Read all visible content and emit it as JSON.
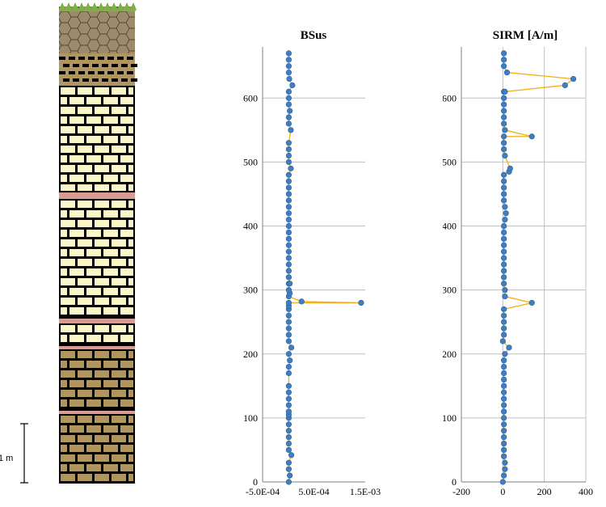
{
  "column": {
    "scale_bar_label": "1 m",
    "layer_colors": {
      "soil": "#9e8a6c",
      "grass": "#7ab33d",
      "cream": "#fbf6c9",
      "tan": "#b1955f",
      "pink": "#d99a91",
      "dark": "#000000"
    }
  },
  "colors": {
    "line": "#f2b21c",
    "marker": "#3f7fc1",
    "marker_edge": "#2f5f9a",
    "grid": "#bfbfbf",
    "axis": "#7f7f7f"
  },
  "chart_data": [
    {
      "type": "line",
      "title": "BSus",
      "xlabel": "",
      "ylabel": "",
      "xlim": [
        -0.0005,
        0.0015
      ],
      "ylim": [
        0,
        680
      ],
      "xticks": [
        -0.0005,
        0.0005,
        0.0015
      ],
      "xtick_labels": [
        "-5.0E-04",
        "5.0E-04",
        "1.5E-03"
      ],
      "yticks": [
        0,
        100,
        200,
        300,
        400,
        500,
        600
      ],
      "ytick_labels": [
        "0",
        "100",
        "200",
        "300",
        "400",
        "500",
        "600"
      ],
      "grid": "horizontal",
      "series": [
        {
          "x": [
            1e-05,
            3e-05,
            1e-05,
            1e-05,
            6e-05,
            1e-05,
            1e-05,
            1e-05,
            1e-05,
            1e-05,
            1e-05,
            1e-05,
            1e-05,
            1e-05,
            6e-05,
            1e-05,
            1e-05,
            1e-05,
            1e-05,
            1e-05,
            1e-05,
            1e-05,
            1e-05,
            1e-05,
            1e-05,
            1e-05,
            1e-05,
            3e-05,
            0.00026,
            0.00142,
            3e-05,
            3e-05,
            5e-05,
            1e-05,
            1e-05,
            1e-05,
            1e-05,
            1e-05,
            1e-05,
            1e-05,
            1e-05,
            1e-05,
            1e-05,
            1e-05,
            1e-05,
            1e-05,
            1e-05,
            1e-05,
            1e-05,
            1e-05,
            5e-05,
            1e-05,
            1e-05,
            1e-05,
            1e-05,
            1e-05,
            3e-05,
            1e-05,
            1e-05,
            1e-05,
            1e-05,
            1e-05,
            1e-05,
            1e-05,
            1e-05,
            1e-05,
            1e-05,
            1e-05,
            8e-05,
            2e-05,
            1e-05,
            1e-05
          ],
          "y": [
            0,
            10,
            20,
            30,
            42,
            50,
            60,
            70,
            80,
            90,
            100,
            105,
            110,
            120,
            210,
            220,
            230,
            240,
            250,
            260,
            270,
            275,
            280,
            290,
            300,
            310,
            200,
            190,
            282,
            280,
            295,
            310,
            490,
            480,
            470,
            460,
            450,
            440,
            430,
            420,
            410,
            400,
            390,
            380,
            370,
            360,
            350,
            340,
            330,
            320,
            550,
            510,
            520,
            530,
            560,
            570,
            580,
            590,
            600,
            610,
            640,
            650,
            660,
            670,
            500,
            130,
            140,
            150,
            620,
            630,
            180,
            170
          ]
        }
      ]
    },
    {
      "type": "line",
      "title": "SIRM [A/m]",
      "xlabel": "",
      "ylabel": "",
      "xlim": [
        -200,
        400
      ],
      "ylim": [
        0,
        680
      ],
      "xticks": [
        -200,
        0,
        200,
        400
      ],
      "xtick_labels": [
        "-200",
        "0",
        "200",
        "400"
      ],
      "yticks": [
        0,
        100,
        200,
        300,
        400,
        500,
        600
      ],
      "ytick_labels": [
        "0",
        "100",
        "200",
        "300",
        "400",
        "500",
        "600"
      ],
      "grid": "horizontal and vertical",
      "series": [
        {
          "x": [
            0,
            5,
            10,
            10,
            5,
            5,
            5,
            5,
            5,
            5,
            5,
            5,
            5,
            5,
            5,
            5,
            5,
            5,
            5,
            30,
            10,
            0,
            5,
            5,
            5,
            5,
            5,
            10,
            140,
            10,
            5,
            5,
            5,
            5,
            5,
            5,
            5,
            5,
            5,
            5,
            10,
            15,
            10,
            5,
            5,
            5,
            5,
            5,
            35,
            30,
            10,
            5,
            5,
            5,
            140,
            10,
            5,
            5,
            5,
            5,
            5,
            5,
            10,
            300,
            340,
            20,
            5,
            5,
            5,
            5
          ],
          "y": [
            0,
            10,
            20,
            30,
            40,
            50,
            60,
            70,
            80,
            90,
            100,
            110,
            120,
            130,
            140,
            150,
            160,
            170,
            180,
            210,
            200,
            220,
            230,
            240,
            250,
            260,
            270,
            290,
            280,
            300,
            310,
            320,
            330,
            340,
            350,
            360,
            370,
            380,
            390,
            400,
            410,
            420,
            430,
            440,
            450,
            460,
            470,
            480,
            490,
            485,
            510,
            520,
            530,
            540,
            540,
            550,
            560,
            570,
            580,
            590,
            600,
            610,
            610,
            620,
            630,
            640,
            650,
            660,
            670,
            190
          ]
        }
      ]
    }
  ]
}
